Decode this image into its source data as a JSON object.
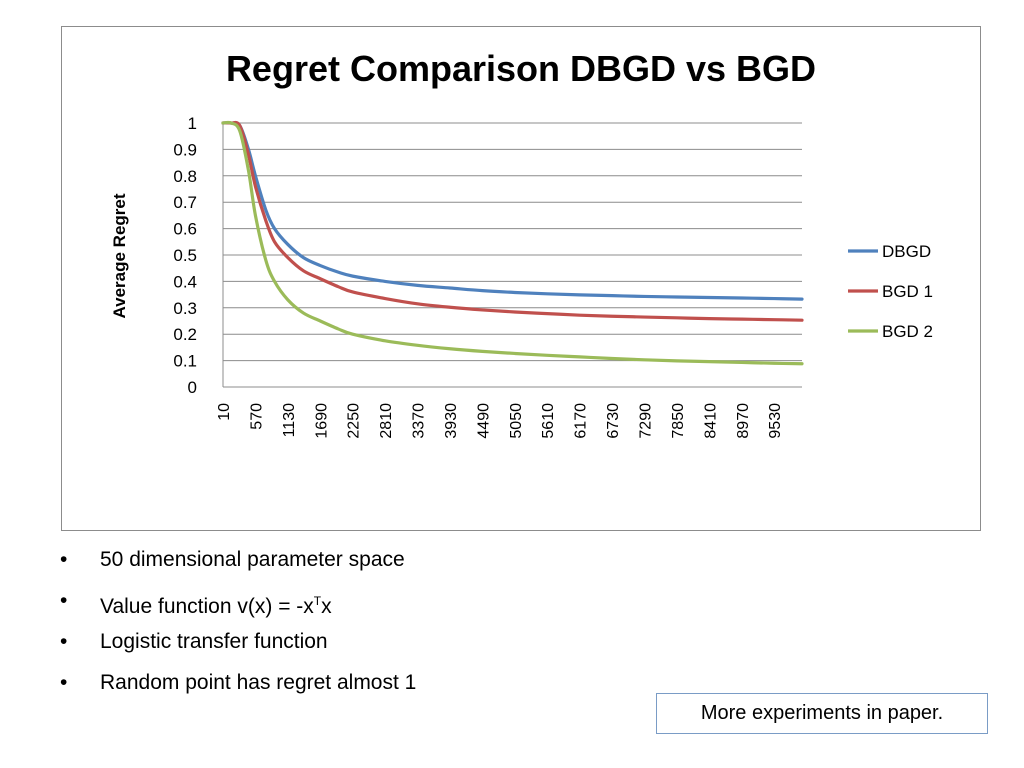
{
  "chart_data": {
    "type": "line",
    "title": "Regret Comparison DBGD vs BGD",
    "xlabel": "",
    "ylabel": "Average Regret",
    "ylim": [
      0,
      1
    ],
    "yticks": [
      "0",
      "0.1",
      "0.2",
      "0.3",
      "0.4",
      "0.5",
      "0.6",
      "0.7",
      "0.8",
      "0.9",
      "1"
    ],
    "xlim": [
      10,
      10010
    ],
    "xticks": [
      "10",
      "570",
      "1130",
      "1690",
      "2250",
      "2810",
      "3370",
      "3930",
      "4490",
      "5050",
      "5610",
      "6170",
      "6730",
      "7290",
      "7850",
      "8410",
      "8970",
      "9530"
    ],
    "grid": "horizontal",
    "legend_position": "right",
    "x": [
      10,
      150,
      300,
      450,
      570,
      750,
      900,
      1130,
      1400,
      1690,
      2000,
      2250,
      2810,
      3370,
      3930,
      4490,
      5050,
      5610,
      6170,
      6730,
      7290,
      7850,
      8410,
      8970,
      9530,
      10010
    ],
    "series": [
      {
        "name": "DBGD",
        "color": "#4f81bd",
        "values": [
          1.0,
          1.0,
          0.99,
          0.9,
          0.8,
          0.67,
          0.6,
          0.54,
          0.49,
          0.46,
          0.435,
          0.42,
          0.4,
          0.385,
          0.375,
          0.365,
          0.358,
          0.353,
          0.349,
          0.346,
          0.343,
          0.341,
          0.339,
          0.337,
          0.335,
          0.333
        ]
      },
      {
        "name": "BGD 1",
        "color": "#c0504d",
        "values": [
          1.0,
          1.0,
          0.99,
          0.88,
          0.76,
          0.63,
          0.55,
          0.49,
          0.44,
          0.41,
          0.38,
          0.36,
          0.335,
          0.315,
          0.302,
          0.292,
          0.284,
          0.278,
          0.272,
          0.268,
          0.265,
          0.262,
          0.259,
          0.257,
          0.255,
          0.253
        ]
      },
      {
        "name": "BGD 2",
        "color": "#9bbb59",
        "values": [
          1.0,
          1.0,
          0.97,
          0.82,
          0.65,
          0.48,
          0.4,
          0.33,
          0.28,
          0.25,
          0.22,
          0.2,
          0.175,
          0.158,
          0.145,
          0.135,
          0.127,
          0.12,
          0.114,
          0.108,
          0.103,
          0.099,
          0.096,
          0.093,
          0.09,
          0.088
        ]
      }
    ]
  },
  "bullets": {
    "glyph": "•",
    "item1": "50 dimensional parameter space",
    "item2_prefix": "Value function v(x) = -x",
    "item2_sup": "T",
    "item2_suffix": "x",
    "item3": "Logistic transfer function",
    "item4": "Random point has regret almost 1"
  },
  "note": "More experiments in paper."
}
